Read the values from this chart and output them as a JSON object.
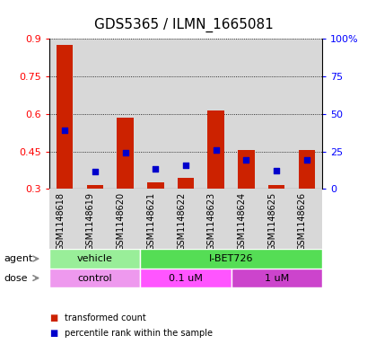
{
  "title": "GDS5365 / ILMN_1665081",
  "samples": [
    "GSM1148618",
    "GSM1148619",
    "GSM1148620",
    "GSM1148621",
    "GSM1148622",
    "GSM1148623",
    "GSM1148624",
    "GSM1148625",
    "GSM1148626"
  ],
  "red_values": [
    0.875,
    0.315,
    0.585,
    0.325,
    0.345,
    0.615,
    0.455,
    0.315,
    0.455
  ],
  "blue_values_norm": [
    0.535,
    0.37,
    0.445,
    0.38,
    0.395,
    0.455,
    0.415,
    0.375,
    0.415
  ],
  "ylim_left": [
    0.3,
    0.9
  ],
  "ylim_right": [
    0,
    100
  ],
  "yticks_left": [
    0.3,
    0.45,
    0.6,
    0.75,
    0.9
  ],
  "yticks_right": [
    0,
    25,
    50,
    75,
    100
  ],
  "ytick_labels_left": [
    "0.3",
    "0.45",
    "0.6",
    "0.75",
    "0.9"
  ],
  "ytick_labels_right": [
    "0",
    "25",
    "50",
    "75",
    "100%"
  ],
  "agent_groups": [
    {
      "label": "vehicle",
      "start": 0,
      "end": 3,
      "color": "#99EE99"
    },
    {
      "label": "I-BET726",
      "start": 3,
      "end": 9,
      "color": "#55DD55"
    }
  ],
  "dose_groups": [
    {
      "label": "control",
      "start": 0,
      "end": 3,
      "color": "#EE99EE"
    },
    {
      "label": "0.1 uM",
      "start": 3,
      "end": 6,
      "color": "#FF55FF"
    },
    {
      "label": "1 uM",
      "start": 6,
      "end": 9,
      "color": "#CC44CC"
    }
  ],
  "bar_color": "#CC2200",
  "dot_color": "#0000CC",
  "col_bg": "#D8D8D8",
  "plot_bg": "#FFFFFF",
  "title_fontsize": 11,
  "tick_fontsize": 8,
  "label_fontsize": 8,
  "bar_width": 0.55,
  "dot_size": 22
}
